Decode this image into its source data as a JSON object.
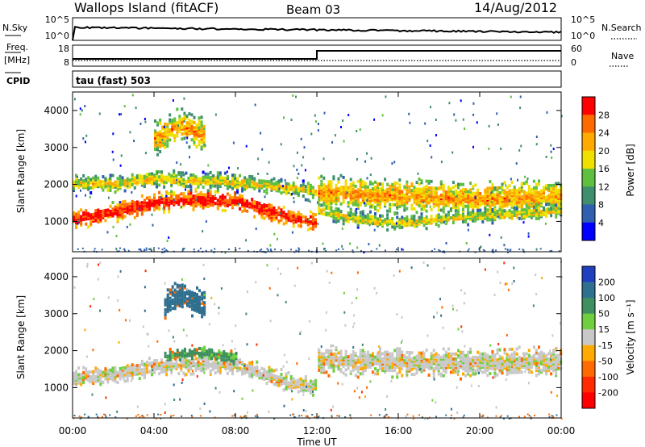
{
  "header": {
    "title": "Wallops Island (fitACF)",
    "beam": "Beam 03",
    "date": "14/Aug/2012"
  },
  "top_panels": {
    "nsky_label": "N.Sky",
    "nsearch_label": "N.Search",
    "nsky_ticks": [
      "10^5",
      "10^0"
    ],
    "nsearch_ticks": [
      "10^5",
      "10^0"
    ],
    "freq_label_1": "Freq.",
    "freq_label_2": "[MHz]",
    "freq_ticks": [
      "18",
      "8"
    ],
    "nave_label": "Nave",
    "nave_ticks": [
      "60",
      "0"
    ],
    "cpid_label": "CPID",
    "cpid_value": "tau (fast) 503"
  },
  "power_colorbar": {
    "label": "Power [dB]",
    "ticks": [
      "28",
      "24",
      "20",
      "16",
      "12",
      "8",
      "4"
    ],
    "colors": [
      "#ff0000",
      "#ff6a00",
      "#ffaa00",
      "#f0e000",
      "#5fbf3f",
      "#3f8f6f",
      "#2f5faf",
      "#0000ff"
    ]
  },
  "velocity_colorbar": {
    "label": "Velocity [m s⁻¹]",
    "ticks": [
      "200",
      "100",
      "50",
      "15",
      "-15",
      "-50",
      "-100",
      "-200"
    ],
    "colors": [
      "#1f3fbf",
      "#2f6f8f",
      "#3f8f5f",
      "#6fcf3f",
      "#c8c8c8",
      "#ffaa00",
      "#ff6a00",
      "#ff2a00",
      "#ff0000"
    ]
  },
  "chart_data": [
    {
      "type": "heatmap",
      "title": "",
      "xlabel": "Time UT",
      "ylabel": "Slant Range [km]",
      "xlim": [
        "00:00",
        "24:00"
      ],
      "ylim": [
        180,
        4500
      ],
      "yticks": [
        1000,
        2000,
        3000,
        4000
      ],
      "xtick_labels": [
        "00:00",
        "04:00",
        "08:00",
        "12:00",
        "16:00",
        "20:00",
        "00:00"
      ],
      "quantity": "Power [dB]",
      "bands": [
        {
          "name": "main",
          "x": [
            0,
            2,
            4,
            6,
            8,
            10,
            11.95
          ],
          "range_center": [
            1050,
            1250,
            1500,
            1600,
            1550,
            1200,
            950
          ],
          "halfwidth": 170,
          "value": 24
        },
        {
          "name": "upper",
          "x": [
            0,
            2,
            4,
            6,
            8,
            10,
            11.95
          ],
          "range_center": [
            2050,
            2000,
            2150,
            2100,
            2050,
            1950,
            1800
          ],
          "halfwidth": 160,
          "value": 12
        },
        {
          "name": "main_pm",
          "x": [
            12.05,
            14,
            16,
            18,
            20,
            22,
            24
          ],
          "range_center": [
            1800,
            1750,
            1700,
            1650,
            1600,
            1650,
            1700
          ],
          "halfwidth": 300,
          "value": 16
        },
        {
          "name": "lower_pm",
          "x": [
            12.05,
            14,
            16,
            18,
            20,
            22,
            24
          ],
          "range_center": [
            1300,
            1050,
            950,
            1050,
            1150,
            1200,
            1300
          ],
          "halfwidth": 130,
          "value": 12
        },
        {
          "name": "high_blob",
          "x": [
            4.0,
            5.2,
            6.5
          ],
          "range_center": [
            3250,
            3600,
            3300
          ],
          "halfwidth": 300,
          "value": 16
        }
      ]
    },
    {
      "type": "heatmap",
      "title": "",
      "xlabel": "Time UT",
      "ylabel": "Slant Range [km]",
      "xlim": [
        "00:00",
        "24:00"
      ],
      "ylim": [
        180,
        4500
      ],
      "yticks": [
        1000,
        2000,
        3000,
        4000
      ],
      "xtick_labels": [
        "00:00",
        "04:00",
        "08:00",
        "12:00",
        "16:00",
        "20:00",
        "00:00"
      ],
      "quantity": "Velocity [m s⁻¹]",
      "bands": [
        {
          "name": "main",
          "x": [
            0,
            2,
            4,
            6,
            8,
            10,
            11.95
          ],
          "range_center": [
            1250,
            1350,
            1550,
            1650,
            1600,
            1250,
            1000
          ],
          "halfwidth": 170,
          "value": 0
        },
        {
          "name": "green_patch",
          "x": [
            4.5,
            6,
            8
          ],
          "range_center": [
            1850,
            1950,
            1800
          ],
          "halfwidth": 120,
          "value": 60
        },
        {
          "name": "main_pm",
          "x": [
            12.05,
            14,
            16,
            18,
            20,
            22,
            24
          ],
          "range_center": [
            1750,
            1700,
            1700,
            1650,
            1650,
            1700,
            1700
          ],
          "halfwidth": 260,
          "value": 0
        },
        {
          "name": "high_blob",
          "x": [
            4.5,
            5.2,
            6.5
          ],
          "range_center": [
            3250,
            3500,
            3200
          ],
          "halfwidth": 260,
          "value": 160
        }
      ]
    }
  ]
}
